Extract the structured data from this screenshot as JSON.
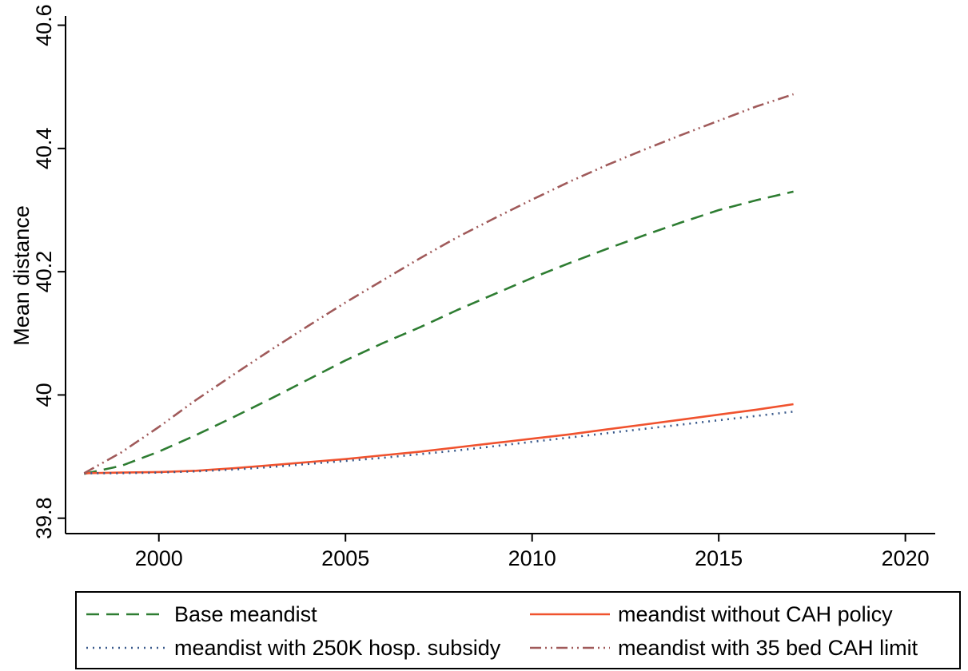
{
  "chart_data": {
    "type": "line",
    "xlabel": "",
    "ylabel": "Mean distance",
    "xlim": [
      1997.5,
      2020.8
    ],
    "ylim": [
      39.775,
      40.615
    ],
    "xticks": [
      2000,
      2005,
      2010,
      2015,
      2020
    ],
    "yticks": [
      39.8,
      40,
      40.2,
      40.4,
      40.6
    ],
    "xtick_labels": [
      "2000",
      "2005",
      "2010",
      "2015",
      "2020"
    ],
    "ytick_labels": [
      "39.8",
      "40",
      "40.2",
      "40.4",
      "40.6"
    ],
    "grid": false,
    "legend_position": "bottom",
    "x": [
      1998,
      1999,
      2000,
      2001,
      2002,
      2003,
      2004,
      2005,
      2006,
      2007,
      2008,
      2009,
      2010,
      2011,
      2012,
      2013,
      2014,
      2015,
      2016,
      2017
    ],
    "series": [
      {
        "name": "Base meandist",
        "color": "#2e7d32",
        "dash": "long-dash",
        "values": [
          39.872,
          39.885,
          39.908,
          39.935,
          39.964,
          39.994,
          40.025,
          40.056,
          40.084,
          40.11,
          40.138,
          40.164,
          40.19,
          40.214,
          40.237,
          40.259,
          40.28,
          40.3,
          40.316,
          40.33
        ]
      },
      {
        "name": "meandist without CAH policy",
        "color": "#f0522e",
        "dash": "solid",
        "values": [
          39.873,
          39.874,
          39.875,
          39.877,
          39.881,
          39.886,
          39.891,
          39.896,
          39.902,
          39.908,
          39.915,
          39.922,
          39.929,
          39.936,
          39.944,
          39.952,
          39.96,
          39.968,
          39.976,
          39.985
        ]
      },
      {
        "name": "meandist with 250K hosp. subsidy",
        "color": "#3a5a8c",
        "dash": "dotted",
        "values": [
          39.873,
          39.873,
          39.874,
          39.876,
          39.879,
          39.883,
          39.888,
          39.893,
          39.898,
          39.904,
          39.91,
          39.917,
          39.924,
          39.931,
          39.938,
          39.945,
          39.952,
          39.959,
          39.966,
          39.973
        ]
      },
      {
        "name": "meandist with 35 bed CAH limit",
        "color": "#a05a5a",
        "dash": "dash-dot-dot",
        "values": [
          39.873,
          39.907,
          39.948,
          39.992,
          40.033,
          40.073,
          40.112,
          40.15,
          40.186,
          40.222,
          40.256,
          40.287,
          40.317,
          40.346,
          40.373,
          40.398,
          40.422,
          40.445,
          40.468,
          40.488
        ]
      }
    ]
  }
}
